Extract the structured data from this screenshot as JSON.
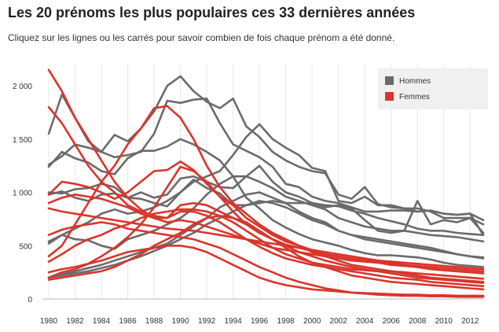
{
  "header": {
    "title": "Les 20 prénoms les plus populaires ces 33 dernières années",
    "subtitle": "Cliquez sur les lignes ou les carrés pour savoir combien de fois chaque prénom a été donné."
  },
  "colors": {
    "men": "#6b6b6b",
    "women": "#d9352b",
    "legend_bg": "#f0f0f0",
    "grid": "#e8e8e8"
  },
  "chart_data": {
    "type": "line",
    "title": "",
    "xlabel": "",
    "ylabel": "",
    "xlim": [
      1980,
      2013
    ],
    "ylim": [
      0,
      2200
    ],
    "yticks": [
      0,
      500,
      1000,
      1500,
      2000
    ],
    "ytick_labels": [
      "0",
      "500",
      "1 000",
      "1 500",
      "2 000"
    ],
    "xticks": [
      1980,
      1982,
      1984,
      1986,
      1988,
      1990,
      1992,
      1994,
      1996,
      1998,
      2000,
      2002,
      2004,
      2006,
      2008,
      2010,
      2012
    ],
    "grid": "vertical",
    "legend": {
      "placement": "top-right",
      "entries": [
        "Hommes",
        "Femmes"
      ]
    },
    "x": [
      1980,
      1981,
      1982,
      1983,
      1984,
      1985,
      1986,
      1987,
      1988,
      1989,
      1990,
      1991,
      1992,
      1993,
      1994,
      1995,
      1996,
      1997,
      1998,
      1999,
      2000,
      2001,
      2002,
      2003,
      2004,
      2005,
      2006,
      2007,
      2008,
      2009,
      2010,
      2011,
      2012,
      2013
    ],
    "series": [
      {
        "group": "Hommes",
        "values": [
          1550,
          1920,
          1700,
          1480,
          1380,
          1540,
          1480,
          1600,
          1760,
          2000,
          2090,
          1950,
          1850,
          1790,
          1880,
          1620,
          1520,
          1380,
          1300,
          1240,
          1200,
          1180,
          980,
          940,
          1050,
          890,
          860,
          850,
          820,
          830,
          800,
          790,
          800,
          600
        ]
      },
      {
        "group": "Hommes",
        "values": [
          1260,
          1340,
          1450,
          1420,
          1380,
          1330,
          1350,
          1380,
          1550,
          1860,
          1840,
          1870,
          1880,
          1650,
          1450,
          1390,
          1330,
          1240,
          1080,
          1050,
          960,
          920,
          900,
          860,
          820,
          820,
          830,
          830,
          820,
          830,
          800,
          790,
          800,
          740
        ]
      },
      {
        "group": "Hommes",
        "values": [
          1240,
          1380,
          1320,
          1280,
          1200,
          1170,
          1320,
          1390,
          1390,
          1430,
          1500,
          1450,
          1380,
          1300,
          1150,
          950,
          850,
          740,
          670,
          610,
          560,
          530,
          500,
          460,
          430,
          410,
          410,
          400,
          390,
          370,
          340,
          320,
          310,
          300
        ]
      },
      {
        "group": "Hommes",
        "values": [
          1000,
          990,
          1030,
          1040,
          1080,
          1050,
          950,
          940,
          900,
          870,
          1000,
          1120,
          1040,
          990,
          880,
          880,
          900,
          920,
          900,
          900,
          900,
          880,
          870,
          830,
          800,
          760,
          730,
          700,
          660,
          640,
          640,
          620,
          610,
          600
        ]
      },
      {
        "group": "Hommes",
        "values": [
          980,
          1010,
          950,
          920,
          980,
          990,
          950,
          1000,
          950,
          980,
          1130,
          1150,
          1100,
          1050,
          1040,
          1150,
          1250,
          1100,
          1000,
          960,
          900,
          860,
          880,
          850,
          740,
          640,
          620,
          640,
          920,
          700,
          740,
          720,
          760,
          620
        ]
      },
      {
        "group": "Hommes",
        "values": [
          520,
          600,
          660,
          720,
          800,
          840,
          800,
          820,
          860,
          920,
          1000,
          1100,
          1150,
          1200,
          1350,
          1520,
          1640,
          1500,
          1420,
          1350,
          1230,
          1200,
          920,
          900,
          960,
          880,
          880,
          850,
          850,
          820,
          760,
          760,
          760,
          700
        ]
      },
      {
        "group": "Hommes",
        "values": [
          540,
          600,
          560,
          550,
          500,
          470,
          560,
          600,
          640,
          700,
          760,
          850,
          980,
          1080,
          1150,
          1150,
          1100,
          1040,
          960,
          920,
          880,
          840,
          760,
          720,
          680,
          660,
          640,
          640,
          620,
          600,
          590,
          580,
          560,
          540
        ]
      },
      {
        "group": "Hommes",
        "values": [
          200,
          230,
          260,
          290,
          320,
          360,
          400,
          440,
          480,
          520,
          600,
          680,
          760,
          860,
          920,
          980,
          1000,
          950,
          900,
          820,
          760,
          720,
          640,
          600,
          560,
          540,
          520,
          500,
          480,
          460,
          440,
          420,
          400,
          380
        ]
      },
      {
        "group": "Hommes",
        "values": [
          200,
          220,
          240,
          260,
          290,
          320,
          360,
          400,
          450,
          500,
          560,
          620,
          700,
          760,
          820,
          880,
          920,
          900,
          860,
          800,
          740,
          700,
          640,
          600,
          580,
          560,
          540,
          520,
          500,
          480,
          450,
          420,
          400,
          390
        ]
      },
      {
        "group": "Femmes",
        "values": [
          2150,
          1950,
          1700,
          1500,
          1300,
          1100,
          950,
          840,
          760,
          760,
          820,
          820,
          780,
          720,
          640,
          560,
          490,
          430,
          380,
          350,
          320,
          300,
          280,
          260,
          240,
          220,
          200,
          190,
          180,
          160,
          150,
          140,
          130,
          120
        ]
      },
      {
        "group": "Femmes",
        "values": [
          1800,
          1650,
          1450,
          1250,
          1100,
          1000,
          880,
          820,
          780,
          760,
          880,
          900,
          880,
          820,
          760,
          700,
          620,
          560,
          500,
          440,
          400,
          360,
          330,
          300,
          280,
          260,
          240,
          220,
          200,
          190,
          180,
          170,
          160,
          150
        ]
      },
      {
        "group": "Femmes",
        "values": [
          980,
          1100,
          1080,
          1050,
          1000,
          940,
          1000,
          1100,
          1200,
          1210,
          1290,
          1210,
          1080,
          960,
          880,
          760,
          680,
          600,
          540,
          500,
          460,
          420,
          400,
          380,
          360,
          340,
          320,
          310,
          300,
          280,
          270,
          260,
          250,
          240
        ]
      },
      {
        "group": "Femmes",
        "values": [
          900,
          950,
          980,
          960,
          940,
          900,
          860,
          800,
          760,
          720,
          740,
          720,
          680,
          640,
          600,
          560,
          520,
          480,
          460,
          440,
          420,
          400,
          380,
          360,
          350,
          340,
          330,
          320,
          310,
          300,
          290,
          280,
          270,
          260
        ]
      },
      {
        "group": "Femmes",
        "values": [
          850,
          820,
          800,
          780,
          760,
          740,
          720,
          700,
          680,
          660,
          650,
          640,
          620,
          600,
          580,
          560,
          540,
          520,
          500,
          480,
          460,
          440,
          420,
          400,
          380,
          360,
          340,
          320,
          300,
          280,
          270,
          260,
          250,
          240
        ]
      },
      {
        "group": "Femmes",
        "values": [
          400,
          500,
          700,
          900,
          1100,
          1250,
          1450,
          1600,
          1790,
          1810,
          1700,
          1500,
          1250,
          1050,
          900,
          800,
          700,
          620,
          560,
          500,
          440,
          400,
          360,
          320,
          300,
          280,
          260,
          240,
          220,
          200,
          190,
          180,
          170,
          160
        ]
      },
      {
        "group": "Femmes",
        "values": [
          200,
          250,
          280,
          330,
          400,
          480,
          580,
          700,
          860,
          1050,
          1240,
          1200,
          1100,
          960,
          820,
          700,
          620,
          560,
          510,
          480,
          450,
          420,
          400,
          380,
          370,
          360,
          350,
          340,
          330,
          320,
          310,
          300,
          290,
          280
        ]
      },
      {
        "group": "Femmes",
        "values": [
          350,
          420,
          500,
          560,
          600,
          660,
          700,
          760,
          800,
          820,
          840,
          840,
          820,
          780,
          720,
          640,
          560,
          480,
          420,
          380,
          340,
          320,
          300,
          280,
          270,
          260,
          260,
          250,
          240,
          230,
          220,
          210,
          200,
          190
        ]
      },
      {
        "group": "Femmes",
        "values": [
          180,
          200,
          220,
          240,
          260,
          300,
          360,
          420,
          500,
          560,
          620,
          700,
          760,
          780,
          760,
          720,
          640,
          560,
          480,
          400,
          340,
          300,
          260,
          220,
          200,
          180,
          160,
          150,
          140,
          130,
          120,
          110,
          100,
          90
        ]
      },
      {
        "group": "Femmes",
        "values": [
          250,
          280,
          300,
          330,
          360,
          400,
          440,
          460,
          480,
          500,
          500,
          480,
          440,
          380,
          320,
          260,
          200,
          160,
          130,
          110,
          90,
          80,
          70,
          60,
          55,
          50,
          45,
          40,
          40,
          35,
          35,
          30,
          30,
          30
        ]
      },
      {
        "group": "Femmes",
        "values": [
          600,
          650,
          680,
          700,
          720,
          700,
          660,
          640,
          620,
          600,
          580,
          560,
          520,
          480,
          420,
          360,
          300,
          250,
          200,
          160,
          130,
          100,
          80,
          60,
          50,
          40,
          35,
          30,
          30,
          25,
          25,
          20,
          20,
          20
        ]
      }
    ]
  }
}
